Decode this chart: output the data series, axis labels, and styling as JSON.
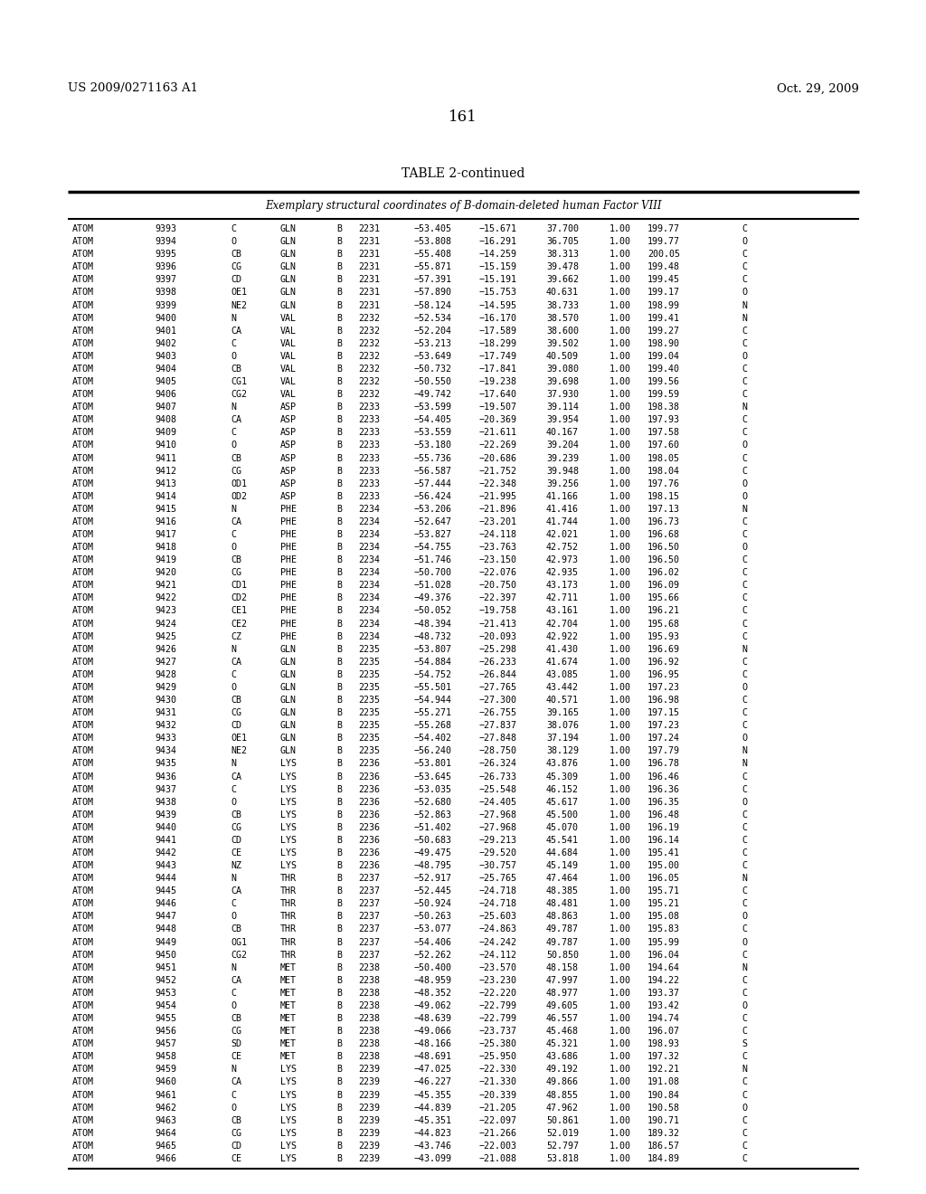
{
  "patent_left": "US 2009/0271163 A1",
  "patent_right": "Oct. 29, 2009",
  "page_number": "161",
  "table_title": "TABLE 2-continued",
  "table_subtitle": "Exemplary structural coordinates of B-domain-deleted human Factor VIII",
  "rows": [
    [
      "ATOM",
      "9393",
      "C",
      "GLN",
      "B",
      "2231",
      "−53.405",
      "−15.671",
      "37.700",
      "1.00",
      "199.77",
      "C"
    ],
    [
      "ATOM",
      "9394",
      "O",
      "GLN",
      "B",
      "2231",
      "−53.808",
      "−16.291",
      "36.705",
      "1.00",
      "199.77",
      "O"
    ],
    [
      "ATOM",
      "9395",
      "CB",
      "GLN",
      "B",
      "2231",
      "−55.408",
      "−14.259",
      "38.313",
      "1.00",
      "200.05",
      "C"
    ],
    [
      "ATOM",
      "9396",
      "CG",
      "GLN",
      "B",
      "2231",
      "−55.871",
      "−15.159",
      "39.478",
      "1.00",
      "199.48",
      "C"
    ],
    [
      "ATOM",
      "9397",
      "CD",
      "GLN",
      "B",
      "2231",
      "−57.391",
      "−15.191",
      "39.662",
      "1.00",
      "199.45",
      "C"
    ],
    [
      "ATOM",
      "9398",
      "OE1",
      "GLN",
      "B",
      "2231",
      "−57.890",
      "−15.753",
      "40.631",
      "1.00",
      "199.17",
      "O"
    ],
    [
      "ATOM",
      "9399",
      "NE2",
      "GLN",
      "B",
      "2231",
      "−58.124",
      "−14.595",
      "38.733",
      "1.00",
      "198.99",
      "N"
    ],
    [
      "ATOM",
      "9400",
      "N",
      "VAL",
      "B",
      "2232",
      "−52.534",
      "−16.170",
      "38.570",
      "1.00",
      "199.41",
      "N"
    ],
    [
      "ATOM",
      "9401",
      "CA",
      "VAL",
      "B",
      "2232",
      "−52.204",
      "−17.589",
      "38.600",
      "1.00",
      "199.27",
      "C"
    ],
    [
      "ATOM",
      "9402",
      "C",
      "VAL",
      "B",
      "2232",
      "−53.213",
      "−18.299",
      "39.502",
      "1.00",
      "198.90",
      "C"
    ],
    [
      "ATOM",
      "9403",
      "O",
      "VAL",
      "B",
      "2232",
      "−53.649",
      "−17.749",
      "40.509",
      "1.00",
      "199.04",
      "O"
    ],
    [
      "ATOM",
      "9404",
      "CB",
      "VAL",
      "B",
      "2232",
      "−50.732",
      "−17.841",
      "39.080",
      "1.00",
      "199.40",
      "C"
    ],
    [
      "ATOM",
      "9405",
      "CG1",
      "VAL",
      "B",
      "2232",
      "−50.550",
      "−19.238",
      "39.698",
      "1.00",
      "199.56",
      "C"
    ],
    [
      "ATOM",
      "9406",
      "CG2",
      "VAL",
      "B",
      "2232",
      "−49.742",
      "−17.640",
      "37.930",
      "1.00",
      "199.59",
      "C"
    ],
    [
      "ATOM",
      "9407",
      "N",
      "ASP",
      "B",
      "2233",
      "−53.599",
      "−19.507",
      "39.114",
      "1.00",
      "198.38",
      "N"
    ],
    [
      "ATOM",
      "9408",
      "CA",
      "ASP",
      "B",
      "2233",
      "−54.405",
      "−20.369",
      "39.954",
      "1.00",
      "197.93",
      "C"
    ],
    [
      "ATOM",
      "9409",
      "C",
      "ASP",
      "B",
      "2233",
      "−53.559",
      "−21.611",
      "40.167",
      "1.00",
      "197.58",
      "C"
    ],
    [
      "ATOM",
      "9410",
      "O",
      "ASP",
      "B",
      "2233",
      "−53.180",
      "−22.269",
      "39.204",
      "1.00",
      "197.60",
      "O"
    ],
    [
      "ATOM",
      "9411",
      "CB",
      "ASP",
      "B",
      "2233",
      "−55.736",
      "−20.686",
      "39.239",
      "1.00",
      "198.05",
      "C"
    ],
    [
      "ATOM",
      "9412",
      "CG",
      "ASP",
      "B",
      "2233",
      "−56.587",
      "−21.752",
      "39.948",
      "1.00",
      "198.04",
      "C"
    ],
    [
      "ATOM",
      "9413",
      "OD1",
      "ASP",
      "B",
      "2233",
      "−57.444",
      "−22.348",
      "39.256",
      "1.00",
      "197.76",
      "O"
    ],
    [
      "ATOM",
      "9414",
      "OD2",
      "ASP",
      "B",
      "2233",
      "−56.424",
      "−21.995",
      "41.166",
      "1.00",
      "198.15",
      "O"
    ],
    [
      "ATOM",
      "9415",
      "N",
      "PHE",
      "B",
      "2234",
      "−53.206",
      "−21.896",
      "41.416",
      "1.00",
      "197.13",
      "N"
    ],
    [
      "ATOM",
      "9416",
      "CA",
      "PHE",
      "B",
      "2234",
      "−52.647",
      "−23.201",
      "41.744",
      "1.00",
      "196.73",
      "C"
    ],
    [
      "ATOM",
      "9417",
      "C",
      "PHE",
      "B",
      "2234",
      "−53.827",
      "−24.118",
      "42.021",
      "1.00",
      "196.68",
      "C"
    ],
    [
      "ATOM",
      "9418",
      "O",
      "PHE",
      "B",
      "2234",
      "−54.755",
      "−23.763",
      "42.752",
      "1.00",
      "196.50",
      "O"
    ],
    [
      "ATOM",
      "9419",
      "CB",
      "PHE",
      "B",
      "2234",
      "−51.746",
      "−23.150",
      "42.973",
      "1.00",
      "196.50",
      "C"
    ],
    [
      "ATOM",
      "9420",
      "CG",
      "PHE",
      "B",
      "2234",
      "−50.700",
      "−22.076",
      "42.935",
      "1.00",
      "196.02",
      "C"
    ],
    [
      "ATOM",
      "9421",
      "CD1",
      "PHE",
      "B",
      "2234",
      "−51.028",
      "−20.750",
      "43.173",
      "1.00",
      "196.09",
      "C"
    ],
    [
      "ATOM",
      "9422",
      "CD2",
      "PHE",
      "B",
      "2234",
      "−49.376",
      "−22.397",
      "42.711",
      "1.00",
      "195.66",
      "C"
    ],
    [
      "ATOM",
      "9423",
      "CE1",
      "PHE",
      "B",
      "2234",
      "−50.052",
      "−19.758",
      "43.161",
      "1.00",
      "196.21",
      "C"
    ],
    [
      "ATOM",
      "9424",
      "CE2",
      "PHE",
      "B",
      "2234",
      "−48.394",
      "−21.413",
      "42.704",
      "1.00",
      "195.68",
      "C"
    ],
    [
      "ATOM",
      "9425",
      "CZ",
      "PHE",
      "B",
      "2234",
      "−48.732",
      "−20.093",
      "42.922",
      "1.00",
      "195.93",
      "C"
    ],
    [
      "ATOM",
      "9426",
      "N",
      "GLN",
      "B",
      "2235",
      "−53.807",
      "−25.298",
      "41.430",
      "1.00",
      "196.69",
      "N"
    ],
    [
      "ATOM",
      "9427",
      "CA",
      "GLN",
      "B",
      "2235",
      "−54.884",
      "−26.233",
      "41.674",
      "1.00",
      "196.92",
      "C"
    ],
    [
      "ATOM",
      "9428",
      "C",
      "GLN",
      "B",
      "2235",
      "−54.752",
      "−26.844",
      "43.085",
      "1.00",
      "196.95",
      "C"
    ],
    [
      "ATOM",
      "9429",
      "O",
      "GLN",
      "B",
      "2235",
      "−55.501",
      "−27.765",
      "43.442",
      "1.00",
      "197.23",
      "O"
    ],
    [
      "ATOM",
      "9430",
      "CB",
      "GLN",
      "B",
      "2235",
      "−54.944",
      "−27.300",
      "40.571",
      "1.00",
      "196.98",
      "C"
    ],
    [
      "ATOM",
      "9431",
      "CG",
      "GLN",
      "B",
      "2235",
      "−55.271",
      "−26.755",
      "39.165",
      "1.00",
      "197.15",
      "C"
    ],
    [
      "ATOM",
      "9432",
      "CD",
      "GLN",
      "B",
      "2235",
      "−55.268",
      "−27.837",
      "38.076",
      "1.00",
      "197.23",
      "C"
    ],
    [
      "ATOM",
      "9433",
      "OE1",
      "GLN",
      "B",
      "2235",
      "−54.402",
      "−27.848",
      "37.194",
      "1.00",
      "197.24",
      "O"
    ],
    [
      "ATOM",
      "9434",
      "NE2",
      "GLN",
      "B",
      "2235",
      "−56.240",
      "−28.750",
      "38.129",
      "1.00",
      "197.79",
      "N"
    ],
    [
      "ATOM",
      "9435",
      "N",
      "LYS",
      "B",
      "2236",
      "−53.801",
      "−26.324",
      "43.876",
      "1.00",
      "196.78",
      "N"
    ],
    [
      "ATOM",
      "9436",
      "CA",
      "LYS",
      "B",
      "2236",
      "−53.645",
      "−26.733",
      "45.309",
      "1.00",
      "196.46",
      "C"
    ],
    [
      "ATOM",
      "9437",
      "C",
      "LYS",
      "B",
      "2236",
      "−53.035",
      "−25.548",
      "46.152",
      "1.00",
      "196.36",
      "C"
    ],
    [
      "ATOM",
      "9438",
      "O",
      "LYS",
      "B",
      "2236",
      "−52.680",
      "−24.405",
      "45.617",
      "1.00",
      "196.35",
      "O"
    ],
    [
      "ATOM",
      "9439",
      "CB",
      "LYS",
      "B",
      "2236",
      "−52.863",
      "−27.968",
      "45.500",
      "1.00",
      "196.48",
      "C"
    ],
    [
      "ATOM",
      "9440",
      "CG",
      "LYS",
      "B",
      "2236",
      "−51.402",
      "−27.968",
      "45.070",
      "1.00",
      "196.19",
      "C"
    ],
    [
      "ATOM",
      "9441",
      "CD",
      "LYS",
      "B",
      "2236",
      "−50.683",
      "−29.213",
      "45.541",
      "1.00",
      "196.14",
      "C"
    ],
    [
      "ATOM",
      "9442",
      "CE",
      "LYS",
      "B",
      "2236",
      "−49.475",
      "−29.520",
      "44.684",
      "1.00",
      "195.41",
      "C"
    ],
    [
      "ATOM",
      "9443",
      "NZ",
      "LYS",
      "B",
      "2236",
      "−48.795",
      "−30.757",
      "45.149",
      "1.00",
      "195.00",
      "C"
    ],
    [
      "ATOM",
      "9444",
      "N",
      "THR",
      "B",
      "2237",
      "−52.917",
      "−25.765",
      "47.464",
      "1.00",
      "196.05",
      "N"
    ],
    [
      "ATOM",
      "9445",
      "CA",
      "THR",
      "B",
      "2237",
      "−52.445",
      "−24.718",
      "48.385",
      "1.00",
      "195.71",
      "C"
    ],
    [
      "ATOM",
      "9446",
      "C",
      "THR",
      "B",
      "2237",
      "−50.924",
      "−24.718",
      "48.481",
      "1.00",
      "195.21",
      "C"
    ],
    [
      "ATOM",
      "9447",
      "O",
      "THR",
      "B",
      "2237",
      "−50.263",
      "−25.603",
      "48.863",
      "1.00",
      "195.08",
      "O"
    ],
    [
      "ATOM",
      "9448",
      "CB",
      "THR",
      "B",
      "2237",
      "−53.077",
      "−24.863",
      "49.787",
      "1.00",
      "195.83",
      "C"
    ],
    [
      "ATOM",
      "9449",
      "OG1",
      "THR",
      "B",
      "2237",
      "−54.406",
      "−24.242",
      "49.787",
      "1.00",
      "195.99",
      "O"
    ],
    [
      "ATOM",
      "9450",
      "CG2",
      "THR",
      "B",
      "2237",
      "−52.262",
      "−24.112",
      "50.850",
      "1.00",
      "196.04",
      "C"
    ],
    [
      "ATOM",
      "9451",
      "N",
      "MET",
      "B",
      "2238",
      "−50.400",
      "−23.570",
      "48.158",
      "1.00",
      "194.64",
      "N"
    ],
    [
      "ATOM",
      "9452",
      "CA",
      "MET",
      "B",
      "2238",
      "−48.959",
      "−23.230",
      "47.997",
      "1.00",
      "194.22",
      "C"
    ],
    [
      "ATOM",
      "9453",
      "C",
      "MET",
      "B",
      "2238",
      "−48.352",
      "−22.220",
      "48.977",
      "1.00",
      "193.37",
      "C"
    ],
    [
      "ATOM",
      "9454",
      "O",
      "MET",
      "B",
      "2238",
      "−49.062",
      "−22.799",
      "49.605",
      "1.00",
      "193.42",
      "O"
    ],
    [
      "ATOM",
      "9455",
      "CB",
      "MET",
      "B",
      "2238",
      "−48.639",
      "−22.799",
      "46.557",
      "1.00",
      "194.74",
      "C"
    ],
    [
      "ATOM",
      "9456",
      "CG",
      "MET",
      "B",
      "2238",
      "−49.066",
      "−23.737",
      "45.468",
      "1.00",
      "196.07",
      "C"
    ],
    [
      "ATOM",
      "9457",
      "SD",
      "MET",
      "B",
      "2238",
      "−48.166",
      "−25.380",
      "45.321",
      "1.00",
      "198.93",
      "S"
    ],
    [
      "ATOM",
      "9458",
      "CE",
      "MET",
      "B",
      "2238",
      "−48.691",
      "−25.950",
      "43.686",
      "1.00",
      "197.32",
      "C"
    ],
    [
      "ATOM",
      "9459",
      "N",
      "LYS",
      "B",
      "2239",
      "−47.025",
      "−22.330",
      "49.192",
      "1.00",
      "192.21",
      "N"
    ],
    [
      "ATOM",
      "9460",
      "CA",
      "LYS",
      "B",
      "2239",
      "−46.227",
      "−21.330",
      "49.866",
      "1.00",
      "191.08",
      "C"
    ],
    [
      "ATOM",
      "9461",
      "C",
      "LYS",
      "B",
      "2239",
      "−45.355",
      "−20.339",
      "48.855",
      "1.00",
      "190.84",
      "C"
    ],
    [
      "ATOM",
      "9462",
      "O",
      "LYS",
      "B",
      "2239",
      "−44.839",
      "−21.205",
      "47.962",
      "1.00",
      "190.58",
      "O"
    ],
    [
      "ATOM",
      "9463",
      "CB",
      "LYS",
      "B",
      "2239",
      "−45.351",
      "−22.097",
      "50.861",
      "1.00",
      "190.71",
      "C"
    ],
    [
      "ATOM",
      "9464",
      "CG",
      "LYS",
      "B",
      "2239",
      "−44.823",
      "−21.266",
      "52.019",
      "1.00",
      "189.32",
      "C"
    ],
    [
      "ATOM",
      "9465",
      "CD",
      "LYS",
      "B",
      "2239",
      "−43.746",
      "−22.003",
      "52.797",
      "1.00",
      "186.57",
      "C"
    ],
    [
      "ATOM",
      "9466",
      "CE",
      "LYS",
      "B",
      "2239",
      "−43.099",
      "−21.088",
      "53.818",
      "1.00",
      "184.89",
      "C"
    ]
  ],
  "bg_color": "#ffffff",
  "text_color": "#000000"
}
